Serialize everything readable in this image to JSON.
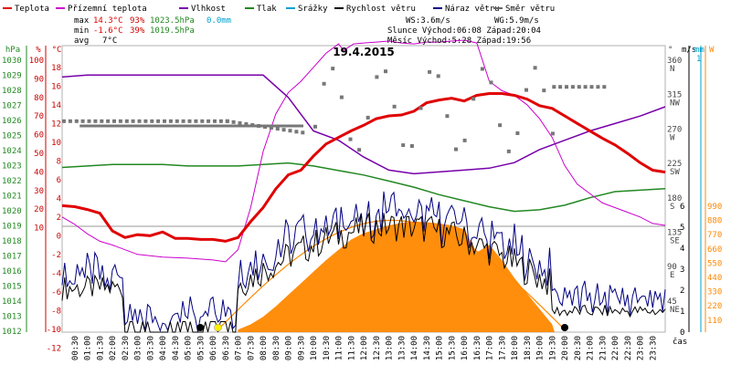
{
  "chart_data": {
    "type": "line",
    "title": "19.4.2015",
    "x_unit_label": "čas",
    "x_ticks": [
      "00:30",
      "01:00",
      "01:30",
      "02:00",
      "02:30",
      "03:00",
      "03:30",
      "04:00",
      "04:30",
      "05:00",
      "05:30",
      "06:00",
      "06:30",
      "07:00",
      "07:30",
      "08:00",
      "08:30",
      "09:00",
      "09:30",
      "10:00",
      "10:30",
      "11:00",
      "11:30",
      "12:00",
      "12:30",
      "13:00",
      "13:30",
      "14:00",
      "14:30",
      "15:00",
      "15:30",
      "16:00",
      "16:30",
      "17:00",
      "17:30",
      "18:00",
      "18:30",
      "19:00",
      "19:30",
      "20:00",
      "20:30",
      "21:00",
      "21:30",
      "22:00",
      "22:30",
      "23:00",
      "23:30"
    ],
    "legend": [
      {
        "name": "Teplota",
        "color": "#e00000"
      },
      {
        "name": "Přízemní teplota",
        "color": "#cc00cc"
      },
      {
        "name": "Vlhkost",
        "color": "#7700aa"
      },
      {
        "name": "Tlak",
        "color": "#228822"
      },
      {
        "name": "Srážky",
        "color": "#00a0d0"
      },
      {
        "name": "Rychlost větru",
        "color": "#000000"
      },
      {
        "name": "Náraz větru",
        "color": "#000080"
      },
      {
        "name": "Směr větru",
        "color": "#666666"
      }
    ],
    "stats": {
      "max_label": "max",
      "max_temp": "14.3°C",
      "max_hum": "93%",
      "max_press": "1023.5hPa",
      "rain": "0.0mm",
      "min_label": "min",
      "min_temp": "-1.6°C",
      "min_hum": "39%",
      "min_press": "1019.5hPa",
      "avg_label": "avg",
      "avg_temp": "7°C",
      "ws": "WS:3.6m/s",
      "wg": "WG:5.9m/s",
      "sun": "Slunce Východ:06:08  Západ:20:04",
      "moon": "Měsíc  Východ:5:28   Západ:19:56"
    },
    "axes": {
      "pressure": {
        "label": "hPa",
        "ticks": [
          "1030",
          "1029",
          "1028",
          "1027",
          "1026",
          "1025",
          "1024",
          "1023",
          "1022",
          "1021",
          "1020",
          "1019",
          "1018",
          "1017",
          "1016",
          "1015",
          "1014",
          "1013",
          "1012"
        ],
        "color": "#228822"
      },
      "humidity": {
        "label": "%",
        "ticks": [
          "100",
          "90",
          "80",
          "70",
          "60",
          "50",
          "40",
          "30",
          "20",
          "10"
        ],
        "color": "#cc0000"
      },
      "temperature": {
        "label": "°C",
        "ticks": [
          "18",
          "16",
          "14",
          "12",
          "10",
          "8",
          "6",
          "4",
          "2",
          "0",
          "-2",
          "-4",
          "-6",
          "-8",
          "-10",
          "-12"
        ],
        "color": "#cc0000"
      },
      "direction": {
        "label": "°",
        "ticks": [
          "360",
          "315",
          "270",
          "225",
          "180",
          "135",
          "90",
          "45"
        ],
        "dirs": [
          "N",
          "NW",
          "W",
          "SW",
          "S",
          "SE",
          "E",
          "NE"
        ],
        "color": "#444444"
      },
      "wind": {
        "label": "m/s",
        "ticks": [
          "6",
          "5",
          "4",
          "3",
          "2",
          "1",
          "0"
        ],
        "color": "#000000"
      },
      "rain_axis": {
        "label": "mm",
        "ticks": [
          "1"
        ],
        "color": "#00a0d0"
      },
      "radiation": {
        "label": "W",
        "ticks": [
          "990",
          "880",
          "770",
          "660",
          "550",
          "440",
          "330",
          "220",
          "110"
        ],
        "color": "#ff8800"
      }
    },
    "series": [
      {
        "name": "Teplota",
        "unit": "°C",
        "x": [
          0,
          0.5,
          1,
          1.5,
          2,
          2.5,
          3,
          3.5,
          4,
          4.5,
          5,
          5.5,
          6,
          6.5,
          7,
          7.5,
          8,
          8.5,
          9,
          9.5,
          10,
          10.5,
          11,
          11.5,
          12,
          12.5,
          13,
          13.5,
          14,
          14.5,
          15,
          15.5,
          16,
          16.5,
          17,
          17.5,
          18,
          18.5,
          19,
          19.5,
          20,
          20.5,
          21,
          21.5,
          22,
          22.5,
          23,
          23.5,
          24
        ],
        "values": [
          2.2,
          2.1,
          1.8,
          1.4,
          -0.5,
          -1.2,
          -0.9,
          -1.0,
          -0.6,
          -1.3,
          -1.3,
          -1.4,
          -1.4,
          -1.6,
          -1.2,
          0.5,
          2.0,
          4.0,
          5.5,
          6.0,
          7.5,
          8.8,
          9.5,
          10.2,
          10.8,
          11.5,
          11.8,
          11.9,
          12.3,
          13.2,
          13.5,
          13.7,
          13.4,
          14.0,
          14.2,
          14.2,
          14.0,
          13.6,
          12.9,
          12.6,
          11.8,
          11.0,
          10.2,
          9.4,
          8.7,
          7.8,
          6.8,
          6.0,
          5.8
        ]
      },
      {
        "name": "Vlhkost",
        "unit": "%",
        "x": [
          0,
          1,
          2,
          3,
          4,
          5,
          6,
          7,
          8,
          9,
          10,
          11,
          12,
          13,
          14,
          15,
          16,
          17,
          18,
          19,
          20,
          21,
          22,
          23,
          24
        ],
        "values": [
          91,
          92,
          92,
          92,
          92,
          92,
          92,
          92,
          92,
          80,
          62,
          57,
          48,
          41,
          39,
          40,
          41,
          42,
          45,
          52,
          57,
          62,
          66,
          70,
          75
        ]
      }
    ]
  }
}
